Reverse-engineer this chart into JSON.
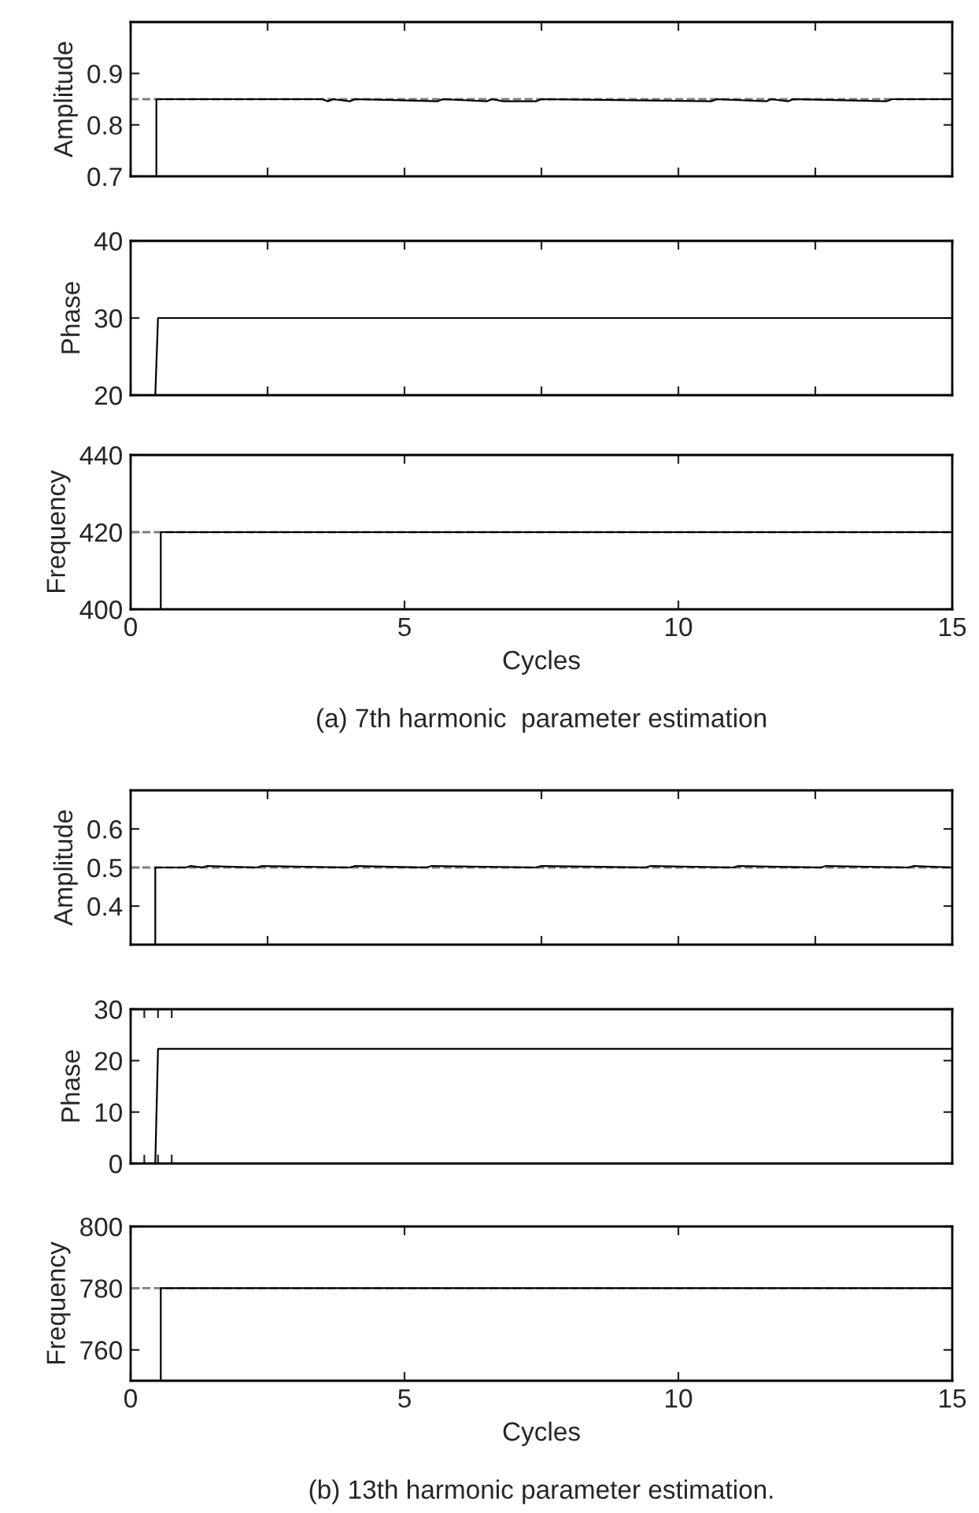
{
  "chart_data": [
    {
      "type": "line",
      "ylabel": "Amplitude",
      "xlim": [
        0,
        15
      ],
      "xticks": [
        {
          "value": 0,
          "label": null
        },
        {
          "value": 2.5,
          "label": null
        },
        {
          "value": 5,
          "label": null
        },
        {
          "value": 7.5,
          "label": null
        },
        {
          "value": 10,
          "label": null
        },
        {
          "value": 12.5,
          "label": null
        },
        {
          "value": 15,
          "label": null
        }
      ],
      "ylim": [
        0.7,
        1.0
      ],
      "yticks": [
        0.7,
        0.8,
        0.9
      ],
      "tick_labels": "y",
      "ref_lines": [
        {
          "axis": "y",
          "value": 0.85,
          "label": null,
          "color": "#808080",
          "line_style": "dashed"
        }
      ],
      "series": [
        {
          "color": "#000000",
          "x": [
            0.47,
            0.47,
            3.5,
            3.6,
            3.7,
            4.0,
            4.1,
            5.6,
            5.7,
            6.5,
            6.6,
            6.8,
            7.4,
            7.5,
            10.6,
            10.7,
            11.6,
            11.7,
            12.0,
            12.1,
            13.8,
            13.9,
            15
          ],
          "values": [
            0.7,
            0.85,
            0.85,
            0.846,
            0.85,
            0.846,
            0.85,
            0.846,
            0.85,
            0.846,
            0.85,
            0.846,
            0.846,
            0.85,
            0.846,
            0.85,
            0.846,
            0.85,
            0.846,
            0.85,
            0.846,
            0.85,
            0.85
          ]
        }
      ]
    },
    {
      "type": "line",
      "ylabel": "Phase",
      "xlim": [
        0,
        15
      ],
      "xticks": [
        {
          "value": 0,
          "label": null
        },
        {
          "value": 2.5,
          "label": null
        },
        {
          "value": 5,
          "label": null
        },
        {
          "value": 7.5,
          "label": null
        },
        {
          "value": 10,
          "label": null
        },
        {
          "value": 12.5,
          "label": null
        },
        {
          "value": 15,
          "label": null
        }
      ],
      "ylim": [
        20,
        40
      ],
      "yticks": [
        20,
        30,
        40
      ],
      "tick_labels": "y",
      "series": [
        {
          "color": "#000000",
          "x": [
            0.45,
            0.5,
            15
          ],
          "values": [
            20,
            30,
            30
          ]
        }
      ]
    },
    {
      "type": "line",
      "ylabel": "Frequency",
      "xlabel": "Cycles",
      "xlim": [
        0,
        15
      ],
      "xticks": [
        0,
        5,
        10,
        15
      ],
      "ylim": [
        400,
        440
      ],
      "yticks": [
        400,
        420,
        440
      ],
      "annotations": [
        "(a) 7th harmonic  parameter estimation"
      ],
      "ref_lines": [
        {
          "axis": "y",
          "value": 420,
          "label": null,
          "color": "#808080",
          "line_style": "dashed"
        }
      ],
      "series": [
        {
          "color": "#000000",
          "x": [
            0.55,
            0.55,
            15
          ],
          "values": [
            400,
            420,
            420
          ]
        }
      ]
    },
    {
      "type": "line",
      "ylabel": "Amplitude",
      "xlim": [
        0,
        15
      ],
      "xticks": [
        {
          "value": 0,
          "label": null
        },
        {
          "value": 2.5,
          "label": null
        },
        {
          "value": 7.5,
          "label": null
        },
        {
          "value": 10,
          "label": null
        },
        {
          "value": 12.5,
          "label": null
        },
        {
          "value": 15,
          "label": null
        }
      ],
      "ylim": [
        0.3,
        0.7
      ],
      "yticks": [
        0.4,
        0.5,
        0.6
      ],
      "tick_labels": "y",
      "ref_lines": [
        {
          "axis": "y",
          "value": 0.5,
          "label": null,
          "color": "#808080",
          "line_style": "dashed"
        }
      ],
      "series": [
        {
          "color": "#000000",
          "x": [
            0.45,
            0.45,
            1.0,
            1.1,
            1.3,
            1.4,
            2.3,
            2.4,
            4.0,
            4.1,
            5.4,
            5.5,
            7.4,
            7.5,
            9.4,
            9.5,
            11.0,
            11.1,
            12.6,
            12.7,
            14.2,
            14.3,
            15
          ],
          "values": [
            0.3,
            0.5,
            0.5,
            0.504,
            0.5,
            0.504,
            0.5,
            0.504,
            0.5,
            0.504,
            0.5,
            0.504,
            0.5,
            0.504,
            0.5,
            0.504,
            0.5,
            0.504,
            0.5,
            0.504,
            0.5,
            0.504,
            0.5
          ]
        }
      ]
    },
    {
      "type": "line",
      "ylabel": "Phase",
      "xlim": [
        0,
        15
      ],
      "xticks": [
        {
          "value": 0,
          "label": null
        },
        {
          "value": 0.25,
          "label": null
        },
        {
          "value": 0.5,
          "label": null
        },
        {
          "value": 0.75,
          "label": null
        },
        {
          "value": 15,
          "label": null
        }
      ],
      "ylim": [
        0,
        30
      ],
      "yticks": [
        0,
        10,
        20,
        30
      ],
      "tick_labels": "y",
      "series": [
        {
          "color": "#000000",
          "x": [
            0.45,
            0.5,
            15
          ],
          "values": [
            0,
            22.3,
            22.3
          ]
        }
      ]
    },
    {
      "type": "line",
      "ylabel": "Frequency",
      "xlabel": "Cycles",
      "xlim": [
        0,
        15
      ],
      "xticks": [
        0,
        5,
        10,
        15
      ],
      "ylim": [
        750,
        800
      ],
      "yticks": [
        760,
        780,
        800
      ],
      "annotations": [
        "(b) 13th harmonic parameter estimation."
      ],
      "ref_lines": [
        {
          "axis": "y",
          "value": 780,
          "label": null,
          "color": "#808080",
          "line_style": "dashed"
        }
      ],
      "series": [
        {
          "color": "#000000",
          "x": [
            0.55,
            0.55,
            15
          ],
          "values": [
            750,
            780,
            780
          ]
        }
      ]
    }
  ]
}
